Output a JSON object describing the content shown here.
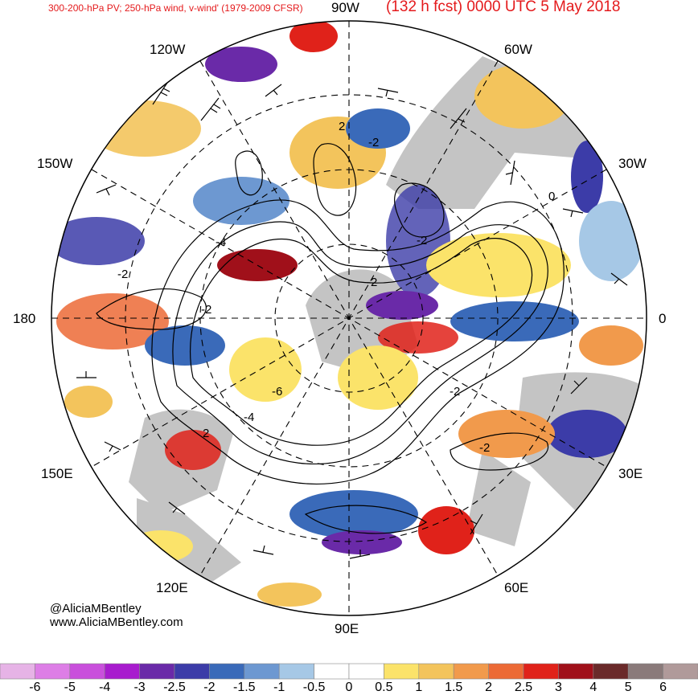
{
  "header": {
    "subtitle": "300-200-hPa PV; 250-hPa wind, v-wind' (1979-2009 CFSR)",
    "forecast": "(132 h fcst) 0000 UTC 5 May 2018"
  },
  "map": {
    "projection": "north polar stereographic",
    "longitude_labels": {
      "lon_90w": "90W",
      "lon_60w": "60W",
      "lon_120w": "120W",
      "lon_150w": "150W",
      "lon_30w": "30W",
      "lon_180": "180",
      "lon_0": "0",
      "lon_150e": "150E",
      "lon_30e": "30E",
      "lon_120e": "120E",
      "lon_60e": "60E",
      "lon_90e": "90E"
    },
    "contour_labels": [
      "2",
      "-2",
      "0",
      "-2",
      "-4",
      "-2",
      "-2",
      "-6",
      "-4",
      "-2",
      "2",
      "-2",
      "-2"
    ],
    "colors": {
      "land": "#c4c4c4",
      "graticule": "#000000",
      "contours": "#000000"
    }
  },
  "credits": {
    "handle": "@AliciaMBentley",
    "website": "www.AliciaMBentley.com"
  },
  "colorbar": {
    "labels": [
      "-6",
      "-5",
      "-4",
      "-3",
      "-2.5",
      "-2",
      "-1.5",
      "-1",
      "-0.5",
      "0",
      "0.5",
      "1",
      "1.5",
      "2",
      "2.5",
      "3",
      "4",
      "5",
      "6"
    ],
    "colors": [
      "#e6b3e6",
      "#dd7ee6",
      "#c94fdc",
      "#a81cce",
      "#6a2aa8",
      "#3c3ca8",
      "#3a6ab9",
      "#6d98d1",
      "#a6c8e6",
      "#ffffff",
      "#ffffff",
      "#fbe36a",
      "#f3c45c",
      "#f19a4c",
      "#ec6a36",
      "#e0221a",
      "#a0101a",
      "#6a2a2a",
      "#8a7a7a",
      "#b09a9a"
    ]
  }
}
